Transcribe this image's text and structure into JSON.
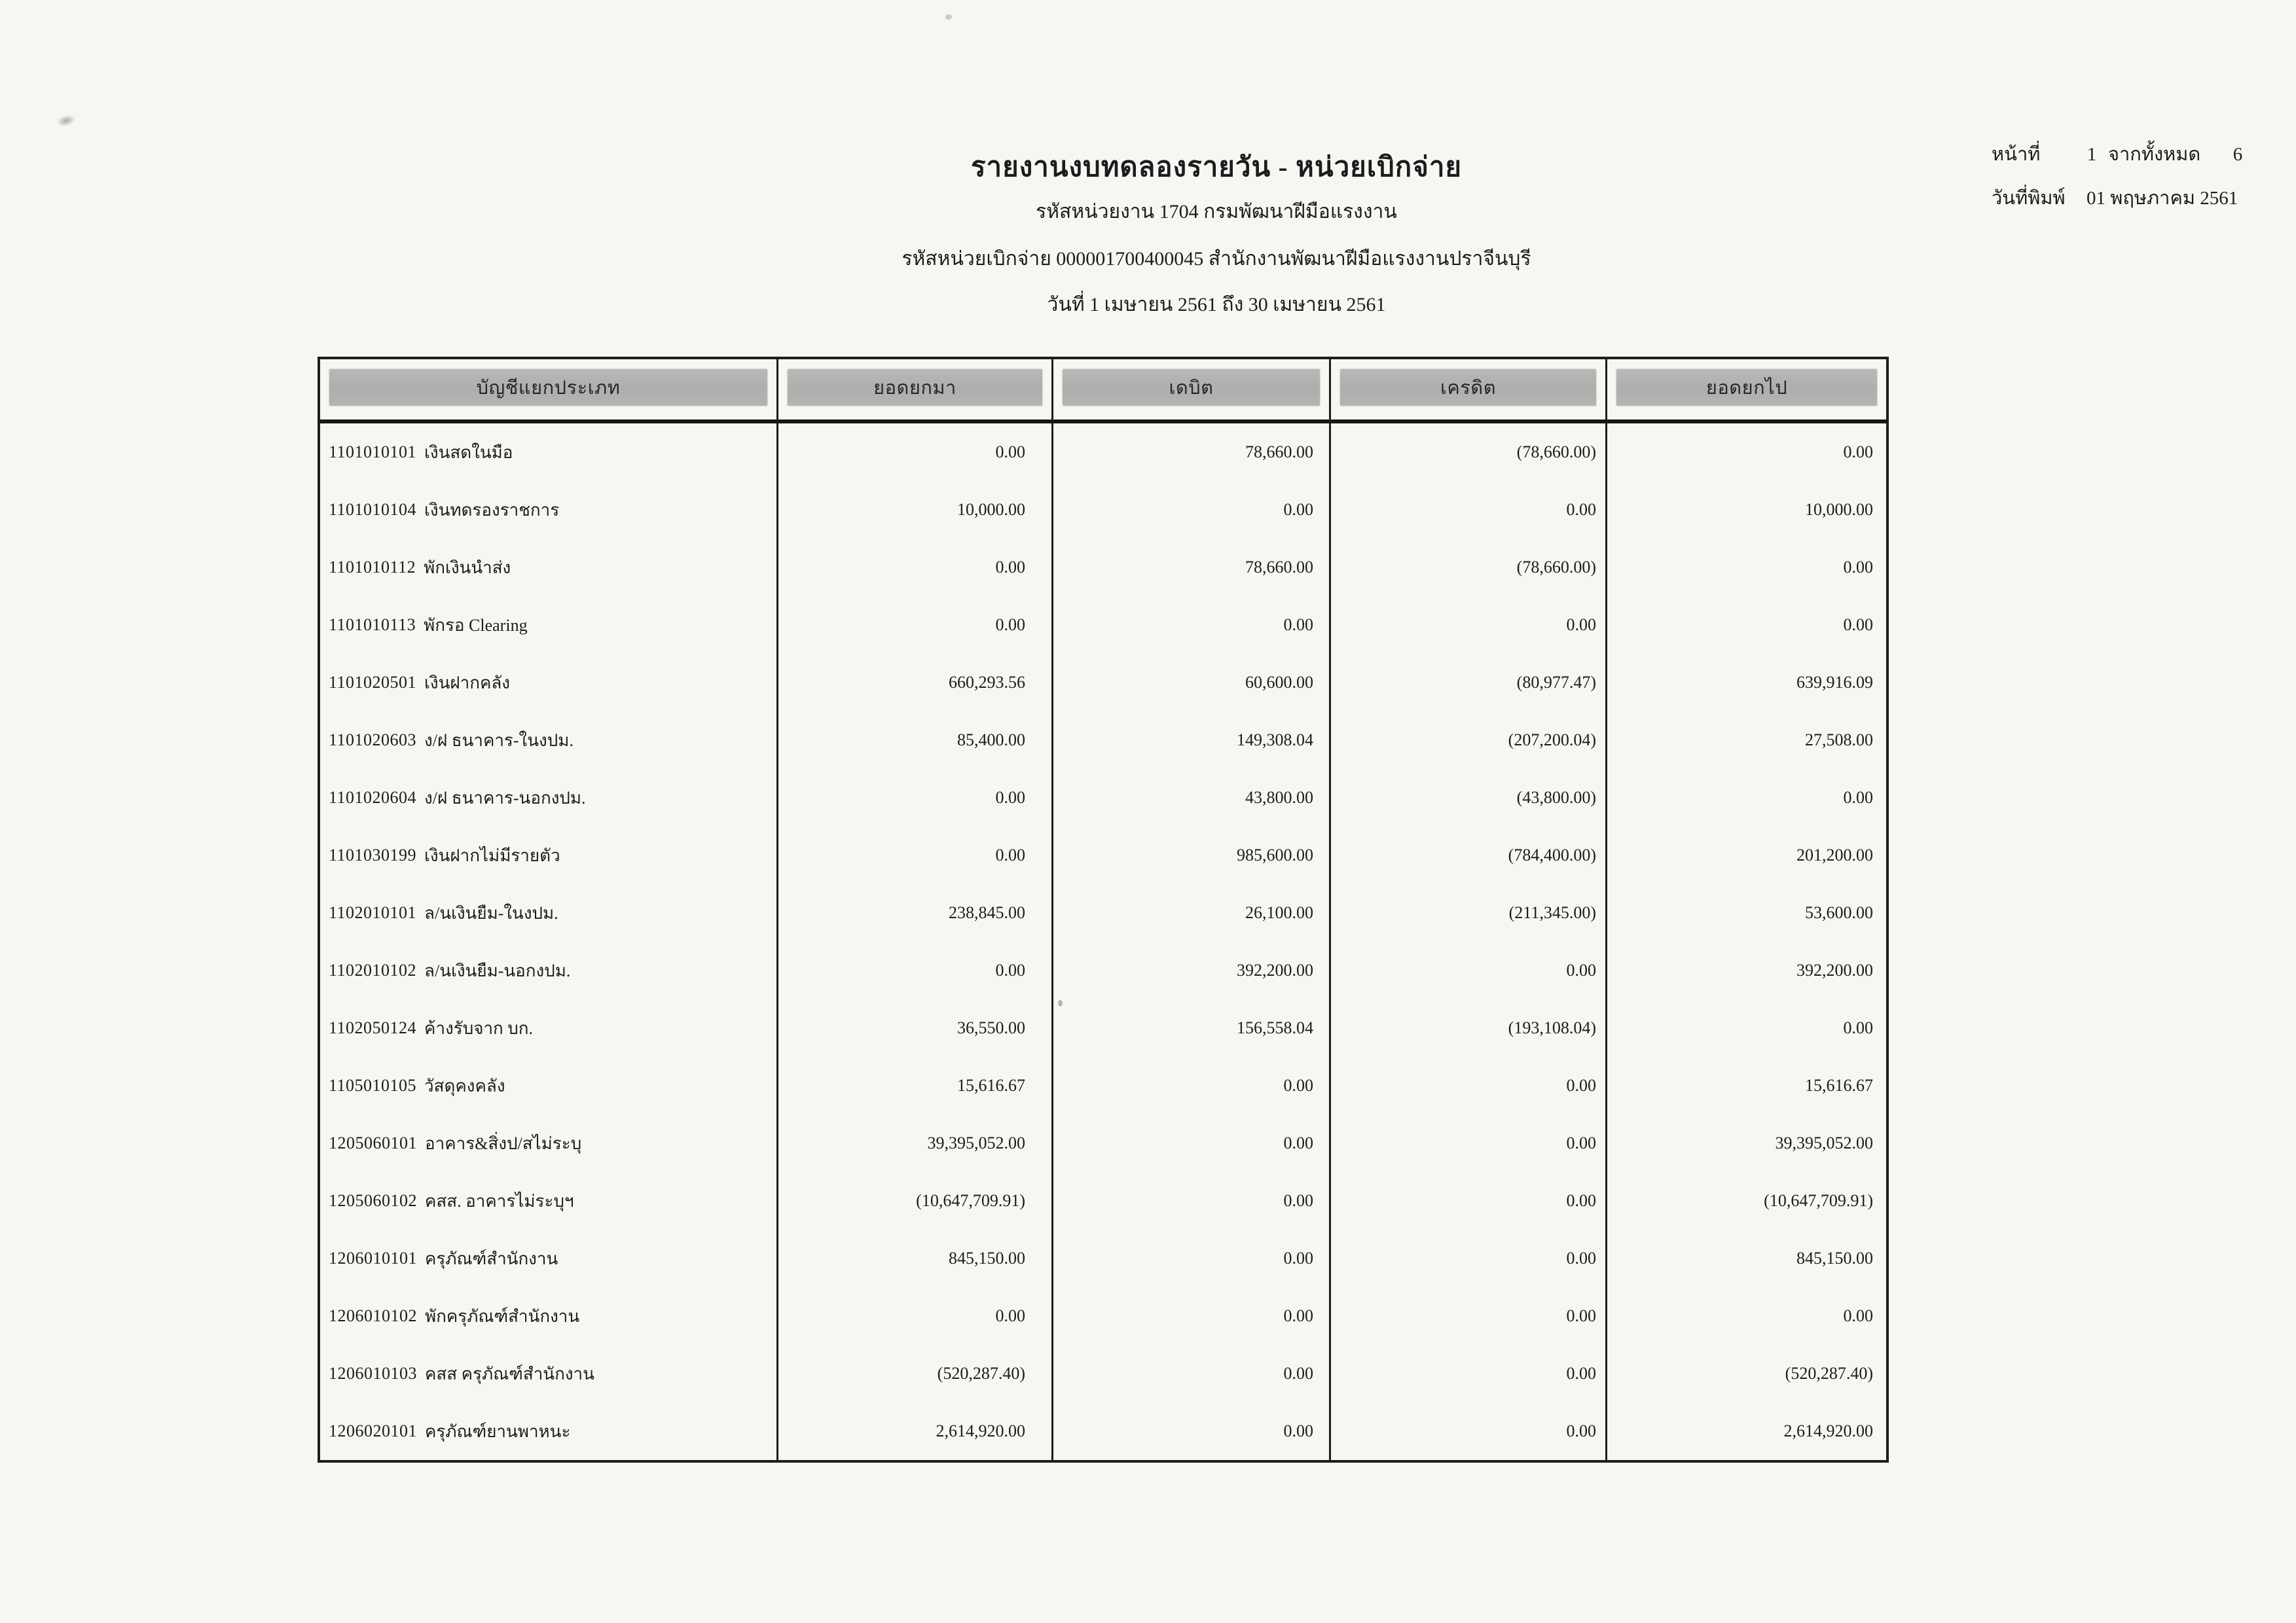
{
  "page": {
    "title": "รายงานงบทดลองรายวัน - หน่วยเบิกจ่าย",
    "subtitle_agency": "รหัสหน่วยงาน 1704 กรมพัฒนาฝีมือแรงงาน",
    "subtitle_unit": "รหัสหน่วยเบิกจ่าย 000001700400045 สำนักงานพัฒนาฝีมือแรงงานปราจีนบุรี",
    "subtitle_period": "วันที่ 1 เมษายน 2561 ถึง 30 เมษายน 2561",
    "page_label": "หน้าที่",
    "page_number": "1",
    "total_label": "จากทั้งหมด",
    "total_pages": "6",
    "print_date_label": "วันที่พิมพ์",
    "print_date": "01 พฤษภาคม 2561"
  },
  "table": {
    "headers": [
      "บัญชีแยกประเภท",
      "ยอดยกมา",
      "เดบิต",
      "เครดิต",
      "ยอดยกไป"
    ],
    "rows": [
      {
        "code": "1101010101",
        "name": "เงินสดในมือ",
        "bf": "0.00",
        "debit": "78,660.00",
        "credit": "(78,660.00)",
        "cf": "0.00"
      },
      {
        "code": "1101010104",
        "name": "เงินทดรองราชการ",
        "bf": "10,000.00",
        "debit": "0.00",
        "credit": "0.00",
        "cf": "10,000.00"
      },
      {
        "code": "1101010112",
        "name": "พักเงินนำส่ง",
        "bf": "0.00",
        "debit": "78,660.00",
        "credit": "(78,660.00)",
        "cf": "0.00"
      },
      {
        "code": "1101010113",
        "name": "พักรอ Clearing",
        "bf": "0.00",
        "debit": "0.00",
        "credit": "0.00",
        "cf": "0.00"
      },
      {
        "code": "1101020501",
        "name": "เงินฝากคลัง",
        "bf": "660,293.56",
        "debit": "60,600.00",
        "credit": "(80,977.47)",
        "cf": "639,916.09"
      },
      {
        "code": "1101020603",
        "name": "ง/ฝ ธนาคาร-ในงปม.",
        "bf": "85,400.00",
        "debit": "149,308.04",
        "credit": "(207,200.04)",
        "cf": "27,508.00"
      },
      {
        "code": "1101020604",
        "name": "ง/ฝ ธนาคาร-นอกงปม.",
        "bf": "0.00",
        "debit": "43,800.00",
        "credit": "(43,800.00)",
        "cf": "0.00"
      },
      {
        "code": "1101030199",
        "name": "เงินฝากไม่มีรายตัว",
        "bf": "0.00",
        "debit": "985,600.00",
        "credit": "(784,400.00)",
        "cf": "201,200.00"
      },
      {
        "code": "1102010101",
        "name": "ล/นเงินยืม-ในงปม.",
        "bf": "238,845.00",
        "debit": "26,100.00",
        "credit": "(211,345.00)",
        "cf": "53,600.00"
      },
      {
        "code": "1102010102",
        "name": "ล/นเงินยืม-นอกงปม.",
        "bf": "0.00",
        "debit": "392,200.00",
        "credit": "0.00",
        "cf": "392,200.00"
      },
      {
        "code": "1102050124",
        "name": "ค้างรับจาก บก.",
        "bf": "36,550.00",
        "debit": "156,558.04",
        "credit": "(193,108.04)",
        "cf": "0.00"
      },
      {
        "code": "1105010105",
        "name": "วัสดุคงคลัง",
        "bf": "15,616.67",
        "debit": "0.00",
        "credit": "0.00",
        "cf": "15,616.67"
      },
      {
        "code": "1205060101",
        "name": "อาคาร&สิ่งป/สไม่ระบุ",
        "bf": "39,395,052.00",
        "debit": "0.00",
        "credit": "0.00",
        "cf": "39,395,052.00"
      },
      {
        "code": "1205060102",
        "name": "คสส. อาคารไม่ระบุฯ",
        "bf": "(10,647,709.91)",
        "debit": "0.00",
        "credit": "0.00",
        "cf": "(10,647,709.91)"
      },
      {
        "code": "1206010101",
        "name": "ครุภัณฑ์สำนักงาน",
        "bf": "845,150.00",
        "debit": "0.00",
        "credit": "0.00",
        "cf": "845,150.00"
      },
      {
        "code": "1206010102",
        "name": "พักครุภัณฑ์สำนักงาน",
        "bf": "0.00",
        "debit": "0.00",
        "credit": "0.00",
        "cf": "0.00"
      },
      {
        "code": "1206010103",
        "name": "คสส ครุภัณฑ์สำนักงาน",
        "bf": "(520,287.40)",
        "debit": "0.00",
        "credit": "0.00",
        "cf": "(520,287.40)"
      },
      {
        "code": "1206020101",
        "name": "ครุภัณฑ์ยานพาหนะ",
        "bf": "2,614,920.00",
        "debit": "0.00",
        "credit": "0.00",
        "cf": "2,614,920.00"
      }
    ]
  }
}
